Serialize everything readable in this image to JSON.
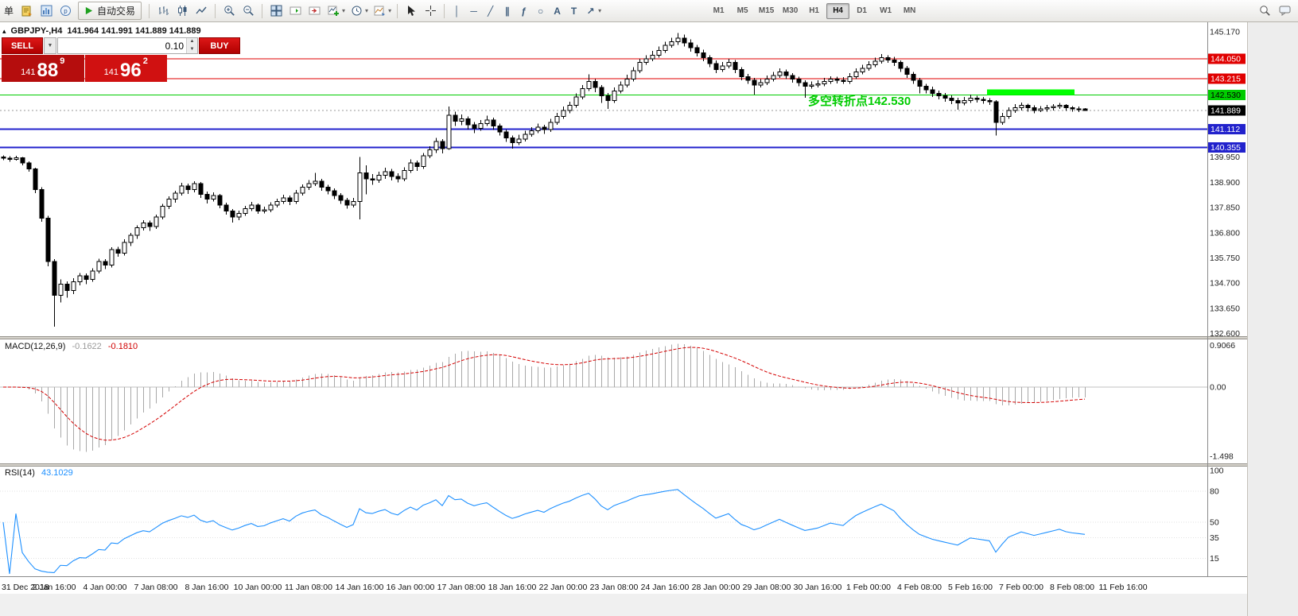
{
  "toolbar": {
    "menu_fragment": "单",
    "autotrade_label": "自动交易",
    "timeframes": [
      "M1",
      "M5",
      "M15",
      "M30",
      "H1",
      "H4",
      "D1",
      "W1",
      "MN"
    ],
    "active_timeframe": "H4"
  },
  "chart": {
    "info": {
      "symbol": "GBPJPY-,H4",
      "ohlc_values": "141.964 141.991 141.889 141.889"
    },
    "trade_panel": {
      "sell_label": "SELL",
      "buy_label": "BUY",
      "lot_value": "0.10",
      "sell_price": {
        "main": "141",
        "big": "88",
        "sup": "9"
      },
      "buy_price": {
        "main": "141",
        "big": "96",
        "sup": "2"
      }
    },
    "annotation": {
      "text": "多空转折点142.530",
      "color": "#00cc00"
    }
  },
  "chart_data": {
    "type": "candlestick",
    "symbol": "GBPJPY",
    "timeframe": "H4",
    "title": "GBPJPY-,H4 141.964 141.991 141.889 141.889",
    "y_range": [
      132.3,
      145.4
    ],
    "y_axis_labels": [
      "145.170",
      "139.950",
      "138.900",
      "137.850",
      "136.800",
      "135.750",
      "134.700",
      "133.650",
      "132.600"
    ],
    "levels": [
      {
        "price": 144.05,
        "label": "144.050",
        "color": "#e00000",
        "text_color": "#ffffff",
        "width": 1
      },
      {
        "price": 143.215,
        "label": "143.215",
        "color": "#e00000",
        "text_color": "#ffffff",
        "width": 1
      },
      {
        "price": 142.53,
        "label": "142.530",
        "color": "#00cc00",
        "text_color": "#000000",
        "width": 1
      },
      {
        "price": 141.112,
        "label": "141.112",
        "color": "#2222cc",
        "text_color": "#ffffff",
        "width": 2
      },
      {
        "price": 140.355,
        "label": "140.355",
        "color": "#2222cc",
        "text_color": "#ffffff",
        "width": 2
      }
    ],
    "current_price": {
      "value": 141.889,
      "label": "141.889",
      "bg": "#000000",
      "text_color": "#ffffff"
    },
    "highlight_segment": {
      "price": 142.53,
      "from_index": 155,
      "to_index": 168,
      "color": "#00ff00"
    },
    "time_axis_labels": [
      "31 Dec 2018",
      "2 Jan 16:00",
      "4 Jan 00:00",
      "7 Jan 08:00",
      "8 Jan 16:00",
      "10 Jan 00:00",
      "11 Jan 08:00",
      "14 Jan 16:00",
      "16 Jan 00:00",
      "17 Jan 08:00",
      "18 Jan 16:00",
      "22 Jan 00:00",
      "23 Jan 08:00",
      "24 Jan 16:00",
      "28 Jan 00:00",
      "29 Jan 08:00",
      "30 Jan 16:00",
      "1 Feb 00:00",
      "4 Feb 08:00",
      "5 Feb 16:00",
      "7 Feb 00:00",
      "8 Feb 08:00",
      "11 Feb 16:00"
    ],
    "indicators": [
      {
        "name": "MACD",
        "label": "MACD(12,26,9)",
        "value1": "-0.1622",
        "value2": "-0.1810",
        "y_axis_labels": [
          "0.9066",
          "0.00",
          "-1.498"
        ],
        "histogram_color": "#a8a8a8",
        "signal_color": "#d40000"
      },
      {
        "name": "RSI",
        "label": "RSI(14)",
        "value": "43.1029",
        "y_axis_labels": [
          "100",
          "80",
          "50",
          "35",
          "15"
        ],
        "line_color": "#1e90ff"
      }
    ],
    "candles": [
      [
        139.95,
        140.02,
        139.82,
        139.9
      ],
      [
        139.9,
        139.98,
        139.76,
        139.85
      ],
      [
        139.85,
        140.0,
        139.8,
        139.92
      ],
      [
        139.92,
        139.96,
        139.6,
        139.7
      ],
      [
        139.7,
        139.78,
        139.35,
        139.45
      ],
      [
        139.45,
        139.5,
        138.45,
        138.6
      ],
      [
        138.6,
        138.7,
        137.25,
        137.4
      ],
      [
        137.4,
        137.5,
        135.4,
        135.6
      ],
      [
        135.6,
        135.7,
        132.88,
        134.2
      ],
      [
        134.2,
        134.85,
        133.9,
        134.65
      ],
      [
        134.65,
        134.78,
        134.1,
        134.4
      ],
      [
        134.4,
        134.9,
        134.25,
        134.75
      ],
      [
        134.75,
        135.12,
        134.6,
        135.0
      ],
      [
        135.0,
        135.1,
        134.65,
        134.85
      ],
      [
        134.85,
        135.32,
        134.75,
        135.2
      ],
      [
        135.2,
        135.72,
        135.1,
        135.6
      ],
      [
        135.6,
        135.7,
        135.28,
        135.45
      ],
      [
        135.45,
        136.2,
        135.35,
        136.1
      ],
      [
        136.1,
        136.22,
        135.8,
        135.95
      ],
      [
        135.95,
        136.52,
        135.85,
        136.4
      ],
      [
        136.4,
        136.8,
        136.25,
        136.7
      ],
      [
        136.7,
        137.1,
        136.55,
        137.0
      ],
      [
        137.0,
        137.32,
        136.9,
        137.2
      ],
      [
        137.2,
        137.3,
        136.88,
        137.05
      ],
      [
        137.05,
        137.55,
        136.95,
        137.45
      ],
      [
        137.45,
        138.0,
        137.35,
        137.9
      ],
      [
        137.9,
        138.32,
        137.78,
        138.2
      ],
      [
        138.2,
        138.55,
        138.05,
        138.45
      ],
      [
        138.45,
        138.88,
        138.35,
        138.75
      ],
      [
        138.75,
        138.85,
        138.42,
        138.6
      ],
      [
        138.6,
        138.95,
        138.48,
        138.85
      ],
      [
        138.85,
        138.92,
        138.25,
        138.4
      ],
      [
        138.4,
        138.52,
        138.02,
        138.2
      ],
      [
        138.2,
        138.48,
        138.1,
        138.35
      ],
      [
        138.35,
        138.42,
        137.82,
        137.95
      ],
      [
        137.95,
        138.05,
        137.55,
        137.7
      ],
      [
        137.7,
        137.78,
        137.22,
        137.45
      ],
      [
        137.45,
        137.72,
        137.32,
        137.6
      ],
      [
        137.6,
        137.92,
        137.5,
        137.8
      ],
      [
        137.8,
        138.08,
        137.7,
        137.95
      ],
      [
        137.95,
        138.02,
        137.58,
        137.7
      ],
      [
        137.7,
        137.88,
        137.6,
        137.75
      ],
      [
        137.75,
        138.06,
        137.65,
        137.95
      ],
      [
        137.95,
        138.22,
        137.85,
        138.1
      ],
      [
        138.1,
        138.38,
        138.0,
        138.25
      ],
      [
        138.25,
        138.35,
        137.95,
        138.1
      ],
      [
        138.1,
        138.58,
        138.0,
        138.45
      ],
      [
        138.45,
        138.82,
        138.35,
        138.7
      ],
      [
        138.7,
        139.0,
        138.58,
        138.85
      ],
      [
        138.85,
        139.3,
        138.75,
        138.95
      ],
      [
        138.95,
        139.05,
        138.55,
        138.7
      ],
      [
        138.7,
        138.8,
        138.4,
        138.55
      ],
      [
        138.55,
        138.65,
        138.2,
        138.35
      ],
      [
        138.35,
        138.45,
        138.0,
        138.15
      ],
      [
        138.15,
        138.25,
        137.8,
        137.95
      ],
      [
        137.95,
        138.25,
        137.85,
        138.1
      ],
      [
        138.1,
        139.95,
        137.35,
        139.3
      ],
      [
        139.3,
        139.6,
        138.4,
        139.05
      ],
      [
        139.05,
        139.25,
        138.8,
        139.0
      ],
      [
        139.0,
        139.35,
        138.88,
        139.2
      ],
      [
        139.2,
        139.5,
        139.05,
        139.35
      ],
      [
        139.35,
        139.45,
        138.98,
        139.15
      ],
      [
        139.15,
        139.28,
        138.9,
        139.05
      ],
      [
        139.05,
        139.52,
        138.95,
        139.4
      ],
      [
        139.4,
        139.85,
        139.3,
        139.7
      ],
      [
        139.7,
        139.8,
        139.38,
        139.55
      ],
      [
        139.55,
        140.12,
        139.45,
        140.0
      ],
      [
        140.0,
        140.4,
        139.9,
        140.25
      ],
      [
        140.25,
        140.75,
        140.12,
        140.6
      ],
      [
        140.6,
        140.7,
        140.1,
        140.3
      ],
      [
        140.3,
        142.05,
        140.25,
        141.7
      ],
      [
        141.7,
        141.85,
        141.25,
        141.45
      ],
      [
        141.45,
        141.72,
        141.28,
        141.55
      ],
      [
        141.55,
        141.65,
        141.1,
        141.3
      ],
      [
        141.3,
        141.42,
        140.95,
        141.15
      ],
      [
        141.15,
        141.5,
        141.05,
        141.35
      ],
      [
        141.35,
        141.68,
        141.25,
        141.5
      ],
      [
        141.5,
        141.6,
        141.08,
        141.25
      ],
      [
        141.25,
        141.35,
        140.85,
        141.0
      ],
      [
        141.0,
        141.1,
        140.58,
        140.75
      ],
      [
        140.75,
        140.85,
        140.3,
        140.55
      ],
      [
        140.55,
        140.88,
        140.45,
        140.7
      ],
      [
        140.7,
        141.05,
        140.6,
        140.9
      ],
      [
        140.9,
        141.2,
        140.8,
        141.05
      ],
      [
        141.05,
        141.35,
        140.95,
        141.2
      ],
      [
        141.2,
        141.3,
        140.92,
        141.1
      ],
      [
        141.1,
        141.55,
        141.0,
        141.4
      ],
      [
        141.4,
        141.8,
        141.3,
        141.65
      ],
      [
        141.65,
        142.05,
        141.55,
        141.9
      ],
      [
        141.9,
        142.25,
        141.78,
        142.1
      ],
      [
        142.1,
        142.6,
        142.0,
        142.45
      ],
      [
        142.45,
        142.95,
        142.35,
        142.8
      ],
      [
        142.8,
        143.4,
        142.7,
        143.1
      ],
      [
        143.1,
        143.2,
        142.65,
        142.85
      ],
      [
        142.85,
        142.95,
        142.2,
        142.5
      ],
      [
        142.5,
        142.62,
        141.95,
        142.3
      ],
      [
        142.3,
        142.85,
        142.2,
        142.7
      ],
      [
        142.7,
        143.1,
        142.6,
        142.95
      ],
      [
        142.95,
        143.38,
        142.85,
        143.2
      ],
      [
        143.2,
        143.7,
        143.1,
        143.55
      ],
      [
        143.55,
        144.05,
        143.45,
        143.9
      ],
      [
        143.9,
        144.2,
        143.8,
        144.05
      ],
      [
        144.05,
        144.38,
        143.95,
        144.2
      ],
      [
        144.2,
        144.55,
        144.1,
        144.4
      ],
      [
        144.4,
        144.75,
        144.3,
        144.6
      ],
      [
        144.6,
        144.92,
        144.5,
        144.75
      ],
      [
        144.75,
        145.12,
        144.62,
        144.9
      ],
      [
        144.9,
        145.05,
        144.55,
        144.7
      ],
      [
        144.7,
        144.85,
        144.35,
        144.5
      ],
      [
        144.5,
        144.62,
        144.15,
        144.3
      ],
      [
        144.3,
        144.42,
        143.95,
        144.1
      ],
      [
        144.1,
        144.2,
        143.7,
        143.85
      ],
      [
        143.85,
        143.98,
        143.45,
        143.6
      ],
      [
        143.6,
        143.92,
        143.5,
        143.75
      ],
      [
        143.75,
        144.05,
        143.65,
        143.9
      ],
      [
        143.9,
        144.0,
        143.45,
        143.6
      ],
      [
        143.6,
        143.7,
        143.15,
        143.3
      ],
      [
        143.3,
        143.42,
        143.0,
        143.15
      ],
      [
        143.15,
        143.25,
        142.55,
        142.95
      ],
      [
        142.95,
        143.2,
        142.85,
        143.05
      ],
      [
        143.05,
        143.35,
        142.95,
        143.2
      ],
      [
        143.2,
        143.5,
        143.1,
        143.35
      ],
      [
        143.35,
        143.65,
        143.25,
        143.5
      ],
      [
        143.5,
        143.6,
        143.2,
        143.35
      ],
      [
        143.35,
        143.45,
        143.05,
        143.2
      ],
      [
        143.2,
        143.3,
        142.9,
        143.05
      ],
      [
        143.05,
        143.15,
        142.42,
        142.9
      ],
      [
        142.9,
        143.1,
        142.8,
        142.95
      ],
      [
        142.95,
        143.15,
        142.85,
        143.0
      ],
      [
        143.0,
        143.25,
        142.9,
        143.1
      ],
      [
        143.1,
        143.32,
        143.0,
        143.2
      ],
      [
        143.2,
        143.3,
        143.02,
        143.15
      ],
      [
        143.15,
        143.28,
        143.0,
        143.1
      ],
      [
        143.1,
        143.45,
        143.0,
        143.3
      ],
      [
        143.3,
        143.65,
        143.2,
        143.5
      ],
      [
        143.5,
        143.8,
        143.4,
        143.65
      ],
      [
        143.65,
        143.95,
        143.55,
        143.8
      ],
      [
        143.8,
        144.1,
        143.7,
        143.95
      ],
      [
        143.95,
        144.25,
        143.85,
        144.1
      ],
      [
        144.1,
        144.2,
        143.88,
        144.0
      ],
      [
        144.0,
        144.12,
        143.75,
        143.9
      ],
      [
        143.9,
        143.98,
        143.5,
        143.65
      ],
      [
        143.65,
        143.75,
        143.25,
        143.4
      ],
      [
        143.4,
        143.5,
        143.0,
        143.15
      ],
      [
        143.15,
        143.25,
        142.6,
        142.9
      ],
      [
        142.9,
        143.0,
        142.6,
        142.75
      ],
      [
        142.75,
        142.88,
        142.45,
        142.6
      ],
      [
        142.6,
        142.72,
        142.35,
        142.5
      ],
      [
        142.5,
        142.62,
        142.25,
        142.4
      ],
      [
        142.4,
        142.52,
        142.15,
        142.3
      ],
      [
        142.3,
        142.42,
        141.92,
        142.2
      ],
      [
        142.2,
        142.45,
        142.1,
        142.3
      ],
      [
        142.3,
        142.55,
        142.2,
        142.4
      ],
      [
        142.4,
        142.5,
        142.22,
        142.35
      ],
      [
        142.35,
        142.45,
        142.18,
        142.3
      ],
      [
        142.3,
        142.4,
        142.12,
        142.25
      ],
      [
        142.25,
        142.32,
        140.85,
        141.4
      ],
      [
        141.4,
        141.8,
        141.3,
        141.65
      ],
      [
        141.65,
        142.02,
        141.55,
        141.9
      ],
      [
        141.9,
        142.15,
        141.8,
        142.0
      ],
      [
        142.0,
        142.22,
        141.9,
        142.1
      ],
      [
        142.1,
        142.18,
        141.85,
        142.0
      ],
      [
        142.0,
        142.1,
        141.78,
        141.9
      ],
      [
        141.9,
        142.08,
        141.82,
        141.95
      ],
      [
        141.95,
        142.12,
        141.85,
        142.0
      ],
      [
        142.0,
        142.15,
        141.9,
        142.05
      ],
      [
        142.05,
        142.2,
        141.95,
        142.1
      ],
      [
        142.1,
        142.16,
        141.88,
        142.0
      ],
      [
        142.0,
        142.08,
        141.85,
        141.95
      ],
      [
        141.95,
        142.05,
        141.82,
        141.92
      ],
      [
        141.964,
        141.991,
        141.889,
        141.889
      ]
    ]
  }
}
